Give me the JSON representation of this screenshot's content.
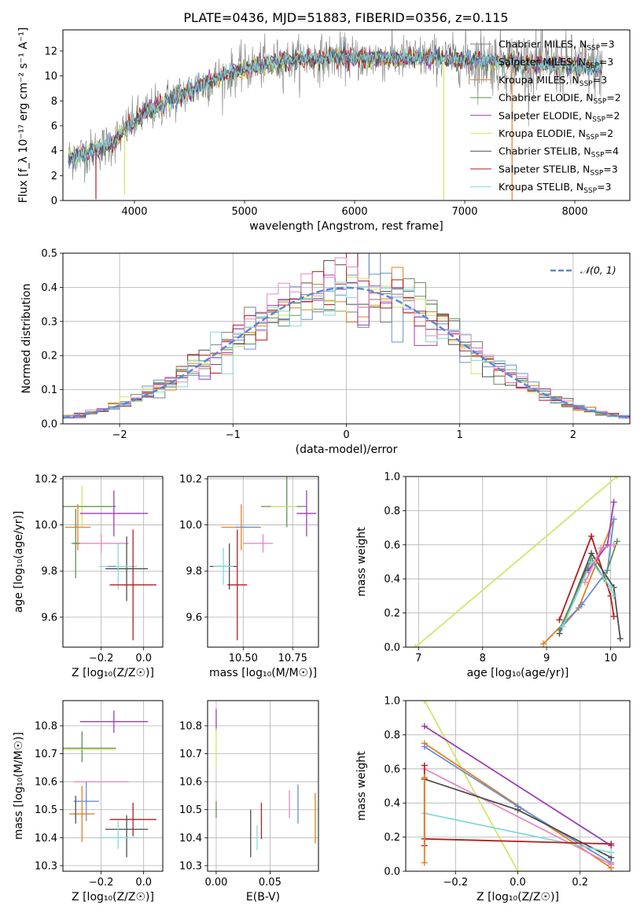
{
  "figure": {
    "title": "PLATE=0436, MJD=51883, FIBERID=0356, z=0.115"
  },
  "palette": {
    "Chabrier MILES": "#7f7f7f",
    "Salpeter MILES": "#6a8fd6",
    "Kroupa MILES": "#e5801f",
    "Chabrier ELODIE": "#5f8f55",
    "Salpeter ELODIE": "#9a3fb5",
    "Kroupa ELODIE": "#d4e46a",
    "Chabrier STELIB": "#4d4d4d",
    "Salpeter STELIB": "#b51d1d",
    "Kroupa STELIB": "#85d8d8",
    "Pink": "#e58ac0"
  },
  "chart_data": [
    {
      "id": "spectrum",
      "type": "line",
      "xlabel": "wavelength [Angstrom, rest frame]",
      "ylabel": "Flux [f_λ 10⁻¹⁷ erg cm⁻² s⁻¹ A⁻¹]",
      "xlim": [
        3350,
        8500
      ],
      "ylim": [
        0,
        13.7
      ],
      "xticks": [
        "4000",
        "5000",
        "6000",
        "7000",
        "8000"
      ],
      "yticks": [
        "0",
        "2",
        "4",
        "6",
        "8",
        "10",
        "12"
      ],
      "grid": false,
      "legend_position": "upper-right",
      "legend": [
        {
          "label": "Chabrier MILES, N",
          "sub": "SSP",
          "tail": "=3",
          "color": "#7f7f7f"
        },
        {
          "label": "Salpeter MILES, N",
          "sub": "SSP",
          "tail": "=3",
          "color": "#6a8fd6"
        },
        {
          "label": "Kroupa MILES, N",
          "sub": "SSP",
          "tail": "=3",
          "color": "#e5801f"
        },
        {
          "label": "Chabrier ELODIE, N",
          "sub": "SSP",
          "tail": "=2",
          "color": "#5f8f55"
        },
        {
          "label": "Salpeter ELODIE, N",
          "sub": "SSP",
          "tail": "=2",
          "color": "#9a3fb5"
        },
        {
          "label": "Kroupa ELODIE, N",
          "sub": "SSP",
          "tail": "=2",
          "color": "#d4e46a"
        },
        {
          "label": "Chabrier STELIB, N",
          "sub": "SSP",
          "tail": "=4",
          "color": "#4d4d4d"
        },
        {
          "label": "Salpeter STELIB, N",
          "sub": "SSP",
          "tail": "=3",
          "color": "#b51d1d"
        },
        {
          "label": "Kroupa STELIB, N",
          "sub": "SSP",
          "tail": "=3",
          "color": "#85d8d8"
        }
      ],
      "continuum": {
        "x": [
          3400,
          3600,
          3800,
          3950,
          4100,
          4300,
          4500,
          4700,
          4900,
          5100,
          5300,
          5500,
          5800,
          6100,
          6400,
          6700,
          7000,
          7300,
          7600,
          7900,
          8250
        ],
        "y": [
          3.4,
          3.9,
          4.6,
          6.0,
          7.0,
          8.0,
          8.8,
          9.6,
          10.3,
          10.8,
          11.1,
          11.3,
          11.5,
          11.4,
          11.4,
          11.5,
          11.3,
          11.2,
          11.0,
          10.8,
          10.6
        ]
      },
      "dips": [
        {
          "x": 3650,
          "y": 0.1
        },
        {
          "x": 3910,
          "y": 0.5
        },
        {
          "x": 6810,
          "y": 0.0
        },
        {
          "x": 7430,
          "y": 0.0
        }
      ]
    },
    {
      "id": "residuals",
      "type": "histogram",
      "xlabel": "(data-model)/error",
      "ylabel": "Normed distribution",
      "xlim": [
        -2.5,
        2.5
      ],
      "ylim": [
        0,
        0.5
      ],
      "xticks": [
        "−2",
        "−1",
        "0",
        "1",
        "2"
      ],
      "yticks": [
        "0.0",
        "0.1",
        "0.2",
        "0.3",
        "0.4",
        "0.5"
      ],
      "grid": true,
      "legend": "𝒩(0, 1)",
      "reference_curve": "normal(0,1)",
      "bins": 50
    },
    {
      "id": "age-vs-Z",
      "type": "scatter",
      "xlabel": "Z [log₁₀(Z/Z☉)]",
      "ylabel": "age [log₁₀(age/yr)]",
      "xlim": [
        -0.38,
        0.09
      ],
      "ylim": [
        9.47,
        10.21
      ],
      "xticks": [
        "−0.2",
        "0.0"
      ],
      "yticks": [
        "9.6",
        "9.8",
        "10.0",
        "10.2"
      ],
      "grid": true,
      "points": [
        {
          "x": -0.29,
          "y": 10.08,
          "xerr": [
            0.16,
            0.16
          ],
          "yerr": [
            0.09,
            0.09
          ],
          "color": "#d4e46a"
        },
        {
          "x": -0.29,
          "y": 10.08,
          "xerr": [
            0.16,
            0.16
          ],
          "yerr": [
            0.0,
            0.0
          ],
          "color": "#5f8f55"
        },
        {
          "x": -0.14,
          "y": 10.05,
          "xerr": [
            0.16,
            0.16
          ],
          "yerr": [
            0.1,
            0.1
          ],
          "color": "#9a3fb5"
        },
        {
          "x": -0.31,
          "y": 9.99,
          "xerr": [
            0.06,
            0.06
          ],
          "yerr": [
            0.1,
            0.1
          ],
          "color": "#e5801f"
        },
        {
          "x": -0.2,
          "y": 9.92,
          "xerr": [
            0.13,
            0.13
          ],
          "yerr": [
            0.04,
            0.04
          ],
          "color": "#e58ac0"
        },
        {
          "x": -0.32,
          "y": 9.92,
          "xerr": [
            0.02,
            0.02
          ],
          "yerr": [
            0.15,
            0.15
          ],
          "color": "#5f8f55"
        },
        {
          "x": -0.08,
          "y": 9.81,
          "xerr": [
            0.1,
            0.1
          ],
          "yerr": [
            0.14,
            0.14
          ],
          "color": "#4d4d4d"
        },
        {
          "x": -0.12,
          "y": 9.82,
          "xerr": [
            0.09,
            0.09
          ],
          "yerr": [
            0.1,
            0.1
          ],
          "color": "#85d8d8"
        },
        {
          "x": -0.15,
          "y": 9.82,
          "xerr": [
            0.02,
            0.02
          ],
          "yerr": [
            0.0,
            0.0
          ],
          "color": "#6a8fd6"
        },
        {
          "x": -0.05,
          "y": 9.74,
          "xerr": [
            0.11,
            0.11
          ],
          "yerr": [
            0.24,
            0.24
          ],
          "color": "#b51d1d"
        }
      ]
    },
    {
      "id": "age-vs-mass",
      "type": "scatter",
      "xlabel": "mass [log₁₀(M/M☉)]",
      "ylabel": "",
      "xlim": [
        10.32,
        10.88
      ],
      "ylim": [
        9.47,
        10.21
      ],
      "xticks": [
        "10.50",
        "10.75"
      ],
      "yticks": [
        "9.6",
        "9.8",
        "10.0",
        "10.2"
      ],
      "grid": true,
      "points": [
        {
          "x": 10.72,
          "y": 10.08,
          "xerr": [
            0.13,
            0.1
          ],
          "yerr": [
            0.09,
            0.31
          ],
          "color": "#5f8f55"
        },
        {
          "x": 10.72,
          "y": 10.08,
          "xerr": [
            0.08,
            0.05
          ],
          "yerr": [
            0.0,
            0.0
          ],
          "color": "#d4e46a"
        },
        {
          "x": 10.82,
          "y": 10.05,
          "xerr": [
            0.05,
            0.05
          ],
          "yerr": [
            0.1,
            0.1
          ],
          "color": "#9a3fb5"
        },
        {
          "x": 10.49,
          "y": 9.99,
          "xerr": [
            0.1,
            0.1
          ],
          "yerr": [
            0.1,
            0.1
          ],
          "color": "#e5801f"
        },
        {
          "x": 10.6,
          "y": 9.92,
          "xerr": [
            0.1,
            0.05
          ],
          "yerr": [
            0.04,
            0.04
          ],
          "color": "#e58ac0"
        },
        {
          "x": 10.52,
          "y": 9.99,
          "xerr": [
            0.06,
            0.06
          ],
          "yerr": [
            0.0,
            0.0
          ],
          "color": "#6a8fd6"
        },
        {
          "x": 10.43,
          "y": 9.82,
          "xerr": [
            0.1,
            0.04
          ],
          "yerr": [
            0.1,
            0.1
          ],
          "color": "#4d4d4d"
        },
        {
          "x": 10.4,
          "y": 9.82,
          "xerr": [
            0.05,
            0.05
          ],
          "yerr": [
            0.08,
            0.08
          ],
          "color": "#85d8d8"
        },
        {
          "x": 10.47,
          "y": 9.74,
          "xerr": [
            0.05,
            0.05
          ],
          "yerr": [
            0.24,
            0.24
          ],
          "color": "#b51d1d"
        }
      ]
    },
    {
      "id": "mass-weight-vs-age",
      "type": "line",
      "xlabel": "age [log₁₀(age/yr)]",
      "ylabel": "mass weight",
      "xlim": [
        6.8,
        10.3
      ],
      "ylim": [
        0,
        1
      ],
      "xticks": [
        "7",
        "8",
        "9",
        "10"
      ],
      "yticks": [
        "0.0",
        "0.2",
        "0.4",
        "0.6",
        "0.8",
        "1.0"
      ],
      "grid": true,
      "series": [
        {
          "x": [
            6.95,
            10.1
          ],
          "y": [
            0.0,
            1.0
          ],
          "color": "#d4e46a"
        },
        {
          "x": [
            9.2,
            9.7,
            10.0,
            10.05
          ],
          "y": [
            0.16,
            0.65,
            0.3,
            0.18
          ],
          "color": "#b51d1d"
        },
        {
          "x": [
            9.2,
            9.7,
            10.05,
            10.15
          ],
          "y": [
            0.08,
            0.55,
            0.35,
            0.05
          ],
          "color": "#4d4d4d"
        },
        {
          "x": [
            8.95,
            9.5,
            10.05
          ],
          "y": [
            0.02,
            0.23,
            0.75
          ],
          "color": "#e5801f"
        },
        {
          "x": [
            9.2,
            9.55,
            9.95,
            10.05
          ],
          "y": [
            0.1,
            0.25,
            0.45,
            0.75
          ],
          "color": "#6a8fd6"
        },
        {
          "x": [
            9.2,
            9.7,
            9.9,
            10.1
          ],
          "y": [
            0.1,
            0.52,
            0.4,
            0.62
          ],
          "color": "#5f8f55"
        },
        {
          "x": [
            9.25,
            9.7,
            10.0,
            10.05
          ],
          "y": [
            0.12,
            0.5,
            0.35,
            0.3
          ],
          "color": "#85d8d8"
        },
        {
          "x": [
            9.65,
            9.95,
            10.05
          ],
          "y": [
            0.45,
            0.6,
            0.85
          ],
          "color": "#9a3fb5"
        },
        {
          "x": [
            9.6,
            9.85,
            10.05
          ],
          "y": [
            0.38,
            0.58,
            0.6
          ],
          "color": "#e58ac0"
        }
      ]
    },
    {
      "id": "mass-vs-Z",
      "type": "scatter",
      "xlabel": "Z [log₁₀(Z/Z☉)]",
      "ylabel": "mass [log₁₀(M/M☉)]",
      "xlim": [
        -0.38,
        0.09
      ],
      "ylim": [
        10.28,
        10.89
      ],
      "xticks": [
        "−0.2",
        "0.0"
      ],
      "yticks": [
        "10.3",
        "10.4",
        "10.5",
        "10.6",
        "10.7",
        "10.8"
      ],
      "grid": true,
      "points": [
        {
          "x": -0.14,
          "y": 10.815,
          "xerr": [
            0.16,
            0.16
          ],
          "yerr": [
            0.04,
            0.04
          ],
          "color": "#9a3fb5"
        },
        {
          "x": -0.29,
          "y": 10.72,
          "xerr": [
            0.16,
            0.16
          ],
          "yerr": [
            0.05,
            0.06
          ],
          "color": "#5f8f55"
        },
        {
          "x": -0.29,
          "y": 10.715,
          "xerr": [
            0.16,
            0.16
          ],
          "yerr": [
            0.0,
            0.0
          ],
          "color": "#d4e46a"
        },
        {
          "x": -0.2,
          "y": 10.6,
          "xerr": [
            0.13,
            0.13
          ],
          "yerr": [
            0.0,
            0.0
          ],
          "color": "#e58ac0"
        },
        {
          "x": -0.27,
          "y": 10.53,
          "xerr": [
            0.06,
            0.06
          ],
          "yerr": [
            0.07,
            0.07
          ],
          "color": "#6a8fd6"
        },
        {
          "x": -0.29,
          "y": 10.485,
          "xerr": [
            0.06,
            0.06
          ],
          "yerr": [
            0.1,
            0.1
          ],
          "color": "#e5801f"
        },
        {
          "x": -0.32,
          "y": 10.5,
          "xerr": [
            0.0,
            0.0
          ],
          "yerr": [
            0.05,
            0.05
          ],
          "color": "#4d4d4d"
        },
        {
          "x": -0.05,
          "y": 10.465,
          "xerr": [
            0.11,
            0.11
          ],
          "yerr": [
            0.06,
            0.06
          ],
          "color": "#b51d1d"
        },
        {
          "x": -0.08,
          "y": 10.43,
          "xerr": [
            0.1,
            0.1
          ],
          "yerr": [
            0.1,
            0.05
          ],
          "color": "#4d4d4d"
        },
        {
          "x": -0.12,
          "y": 10.4,
          "xerr": [
            0.09,
            0.09
          ],
          "yerr": [
            0.04,
            0.06
          ],
          "color": "#85d8d8"
        }
      ]
    },
    {
      "id": "mass-vs-ebv",
      "type": "scatter",
      "xlabel": "E(B-V)",
      "ylabel": "",
      "xlim": [
        -0.008,
        0.095
      ],
      "ylim": [
        10.28,
        10.89
      ],
      "xticks": [
        "0.00",
        "0.05"
      ],
      "yticks": [
        "10.3",
        "10.4",
        "10.5",
        "10.6",
        "10.7",
        "10.8"
      ],
      "grid": true,
      "points": [
        {
          "x": 0.0,
          "y": 10.82,
          "xerr": [
            0.0,
            0.0
          ],
          "yerr": [
            0.04,
            0.04
          ],
          "color": "#9a3fb5"
        },
        {
          "x": 0.0,
          "y": 10.72,
          "xerr": [
            0.0,
            0.0
          ],
          "yerr": [
            0.07,
            0.07
          ],
          "color": "#d4e46a"
        },
        {
          "x": 0.0,
          "y": 10.5,
          "xerr": [
            0.0,
            0.0
          ],
          "yerr": [
            0.03,
            0.03
          ],
          "color": "#5f8f55"
        },
        {
          "x": 0.032,
          "y": 10.415,
          "xerr": [
            0.0,
            0.0
          ],
          "yerr": [
            0.085,
            0.085
          ],
          "color": "#4d4d4d"
        },
        {
          "x": 0.038,
          "y": 10.4,
          "xerr": [
            0.0,
            0.0
          ],
          "yerr": [
            0.045,
            0.045
          ],
          "color": "#85d8d8"
        },
        {
          "x": 0.042,
          "y": 10.46,
          "xerr": [
            0.0,
            0.0
          ],
          "yerr": [
            0.065,
            0.065
          ],
          "color": "#b51d1d"
        },
        {
          "x": 0.068,
          "y": 10.52,
          "xerr": [
            0.0,
            0.0
          ],
          "yerr": [
            0.05,
            0.05
          ],
          "color": "#e58ac0"
        },
        {
          "x": 0.076,
          "y": 10.52,
          "xerr": [
            0.0,
            0.0
          ],
          "yerr": [
            0.07,
            0.07
          ],
          "color": "#6a8fd6"
        },
        {
          "x": 0.092,
          "y": 10.47,
          "xerr": [
            0.0,
            0.0
          ],
          "yerr": [
            0.09,
            0.09
          ],
          "color": "#e5801f"
        }
      ]
    },
    {
      "id": "mass-weight-vs-Z",
      "type": "line",
      "xlabel": "Z [log₁₀(Z/Z☉)]",
      "ylabel": "mass weight",
      "xlim": [
        -0.36,
        0.36
      ],
      "ylim": [
        0,
        1
      ],
      "xticks": [
        "−0.2",
        "0.0",
        "0.2"
      ],
      "yticks": [
        "0.0",
        "0.2",
        "0.4",
        "0.6",
        "0.8",
        "1.0"
      ],
      "grid": true,
      "series": [
        {
          "x": [
            -0.3,
            0.0
          ],
          "y": [
            1.0,
            0.0
          ],
          "color": "#d4e46a"
        },
        {
          "x": [
            -0.3,
            0.3
          ],
          "y": [
            0.85,
            0.15
          ],
          "color": "#9a3fb5"
        },
        {
          "x": [
            -0.3,
            0.3
          ],
          "y": [
            0.75,
            0.02
          ],
          "color": "#e5801f"
        },
        {
          "x": [
            -0.3,
            0.0,
            0.3
          ],
          "y": [
            0.73,
            0.38,
            0.05
          ],
          "color": "#6a8fd6"
        },
        {
          "x": [
            -0.3,
            0.3
          ],
          "y": [
            0.6,
            0.04
          ],
          "color": "#e58ac0"
        },
        {
          "x": [
            -0.3,
            0.0,
            0.3
          ],
          "y": [
            0.54,
            0.36,
            0.08
          ],
          "color": "#4d4d4d"
        },
        {
          "x": [
            -0.3,
            0.3
          ],
          "y": [
            0.34,
            0.11
          ],
          "color": "#85d8d8"
        },
        {
          "x": [
            -0.3,
            0.3
          ],
          "y": [
            0.19,
            0.16
          ],
          "color": "#b51d1d"
        },
        {
          "x": [
            -0.3,
            -0.3
          ],
          "y": [
            0.15,
            0.62
          ],
          "color": "#b51d1d"
        },
        {
          "x": [
            -0.3,
            -0.3
          ],
          "y": [
            0.05,
            0.55
          ],
          "color": "#e5801f"
        }
      ]
    }
  ]
}
